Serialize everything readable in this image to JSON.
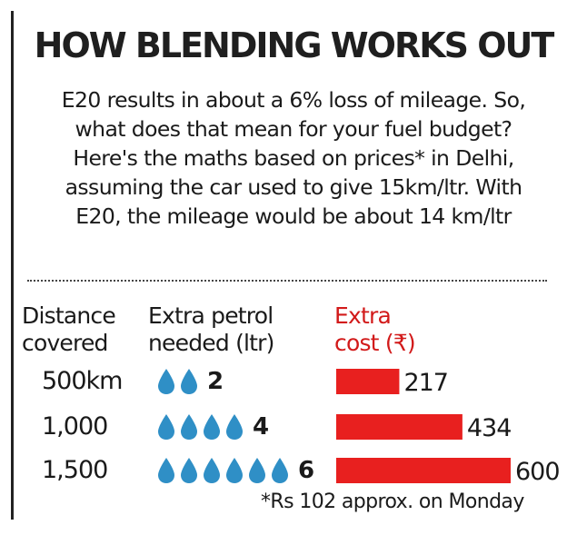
{
  "title": "HOW BLENDING WORKS OUT",
  "intro_lines": [
    "E20 results in about a 6% loss of mileage. So,",
    "what does that mean for your fuel budget?",
    "Here's the maths based on prices* in Delhi,",
    "assuming the car used to give 15km/ltr. With",
    "E20, the mileage would be about 14 km/ltr"
  ],
  "headers": {
    "distance": [
      "Distance",
      "covered"
    ],
    "petrol": [
      "Extra petrol",
      "needed (ltr)"
    ],
    "cost": [
      "Extra",
      "cost (₹)"
    ]
  },
  "colors": {
    "bar": "#e8201f",
    "drop": "#2f8fc6",
    "cost_header": "#d21a1a"
  },
  "icons": {
    "drop": "water-drop-icon"
  },
  "footnote": "*Rs 102 approx. on Monday",
  "chart_data": {
    "type": "bar",
    "categories": [
      "500km",
      "1,000",
      "1,500"
    ],
    "series": [
      {
        "name": "Extra petrol needed (ltr)",
        "values": [
          2,
          4,
          6
        ]
      },
      {
        "name": "Extra cost (₹)",
        "values": [
          217,
          434,
          600
        ]
      }
    ],
    "xlabel": "Distance covered"
  }
}
